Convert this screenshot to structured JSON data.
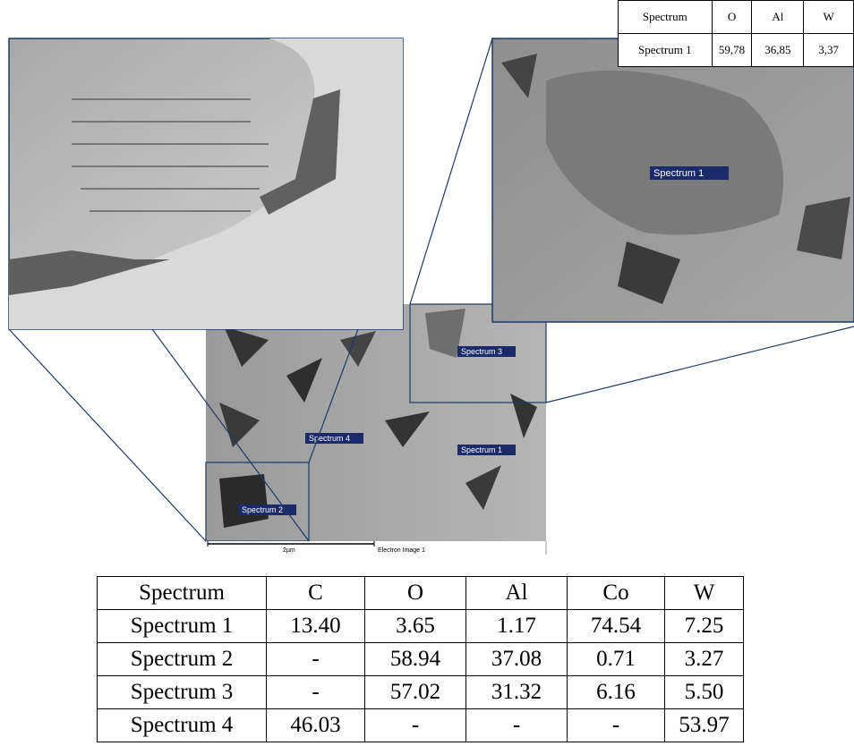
{
  "top_table": {
    "header": [
      "Spectrum",
      "O",
      "Al",
      "W"
    ],
    "rows": [
      [
        "Spectrum 1",
        "59,78",
        "36,85",
        "3,37"
      ]
    ]
  },
  "inset_label": "Spectrum 1",
  "sem_labels": [
    "Spectrum 3",
    "Spectrum 4",
    "Spectrum 1",
    "Spectrum 2"
  ],
  "scale_bar": "2µm",
  "image_caption": "Electron Image 1",
  "bottom_table": {
    "header": [
      "Spectrum",
      "C",
      "O",
      "Al",
      "Co",
      "W"
    ],
    "rows": [
      [
        "Spectrum 1",
        "13.40",
        "3.65",
        "1.17",
        "74.54",
        "7.25"
      ],
      [
        "Spectrum 2",
        "-",
        "58.94",
        "37.08",
        "0.71",
        "3.27"
      ],
      [
        "Spectrum 3",
        "-",
        "57.02",
        "31.32",
        "6.16",
        "5.50"
      ],
      [
        "Spectrum 4",
        "46.03",
        "-",
        "-",
        "-",
        "53.97"
      ]
    ]
  }
}
